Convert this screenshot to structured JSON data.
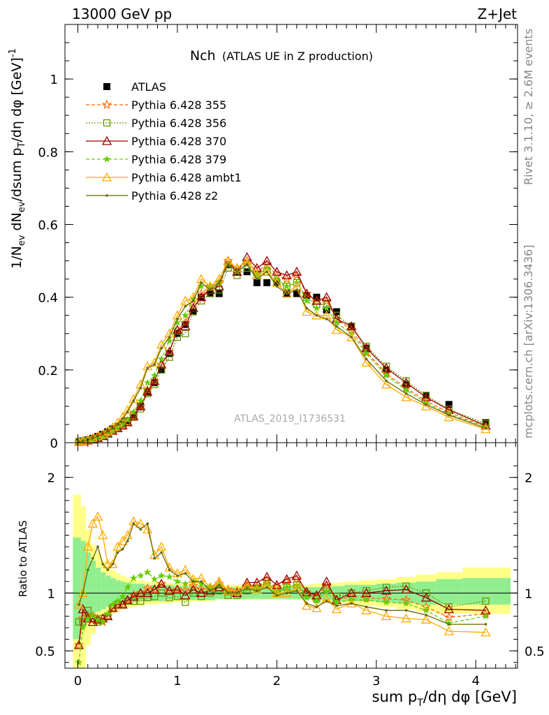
{
  "header": {
    "energy_label": "13000 GeV pp",
    "process_label": "Z+Jet",
    "side_version": "Rivet 3.1.10, ≥ 2.6M events",
    "side_site": "mcplots.cern.ch [arXiv:1306.3436]",
    "analysis_id": "ATLAS_2019_I1736531"
  },
  "chart_data": [
    {
      "type": "line",
      "title": "Nch",
      "subtitle": "(ATLAS UE in Z production)",
      "ylabel": "1/N_ev dN_ev/dsum p_T/dη dφ [GeV]^-1",
      "ylabel_parts": {
        "a": "1/N",
        "b": "ev",
        "c": " dN",
        "d": "ev",
        "e": "/dsum p",
        "f": "T",
        "g": "/dη dφ  [GeV]",
        "h": "-1"
      },
      "xlim": [
        -0.13,
        4.42
      ],
      "ylim": [
        0,
        1.15
      ],
      "yticks": [
        0,
        0.2,
        0.4,
        0.6,
        0.8,
        1
      ],
      "ytick_labels": [
        "0",
        "0.2",
        "0.4",
        "0.6",
        "0.8",
        "1"
      ],
      "x": [
        0.01,
        0.05,
        0.1,
        0.15,
        0.2,
        0.25,
        0.3,
        0.35,
        0.4,
        0.45,
        0.5,
        0.56,
        0.63,
        0.7,
        0.77,
        0.84,
        0.92,
        1.0,
        1.08,
        1.16,
        1.24,
        1.33,
        1.42,
        1.51,
        1.6,
        1.7,
        1.8,
        1.9,
        2.0,
        2.1,
        2.2,
        2.3,
        2.4,
        2.5,
        2.6,
        2.75,
        2.9,
        3.1,
        3.3,
        3.5,
        3.73,
        4.1
      ],
      "series": [
        {
          "name": "ATLAS",
          "color": "#000000",
          "values": [
            0.003,
            0.005,
            0.008,
            0.012,
            0.017,
            0.023,
            0.03,
            0.038,
            0.044,
            0.052,
            0.06,
            0.075,
            0.1,
            0.14,
            0.165,
            0.2,
            0.245,
            0.3,
            0.325,
            0.36,
            0.4,
            0.41,
            0.41,
            0.49,
            0.47,
            0.47,
            0.44,
            0.44,
            0.44,
            0.41,
            0.41,
            0.405,
            0.4,
            0.365,
            0.36,
            0.32,
            0.26,
            0.2,
            0.16,
            0.13,
            0.105,
            0.055
          ]
        },
        {
          "name": "Pythia 6.428 355",
          "color": "#ff6600",
          "values": [
            0.002,
            0.004,
            0.006,
            0.009,
            0.013,
            0.018,
            0.025,
            0.033,
            0.04,
            0.047,
            0.056,
            0.073,
            0.1,
            0.145,
            0.17,
            0.215,
            0.25,
            0.31,
            0.33,
            0.38,
            0.41,
            0.43,
            0.44,
            0.5,
            0.48,
            0.5,
            0.47,
            0.49,
            0.46,
            0.45,
            0.46,
            0.41,
            0.39,
            0.39,
            0.34,
            0.31,
            0.25,
            0.19,
            0.15,
            0.115,
            0.083,
            0.045
          ]
        },
        {
          "name": "Pythia 6.428 356",
          "color": "#669900",
          "values": [
            0.002,
            0.004,
            0.006,
            0.009,
            0.013,
            0.018,
            0.025,
            0.033,
            0.04,
            0.047,
            0.056,
            0.07,
            0.093,
            0.135,
            0.16,
            0.2,
            0.235,
            0.29,
            0.3,
            0.36,
            0.39,
            0.41,
            0.42,
            0.48,
            0.46,
            0.48,
            0.46,
            0.47,
            0.44,
            0.43,
            0.44,
            0.4,
            0.38,
            0.38,
            0.35,
            0.32,
            0.265,
            0.21,
            0.17,
            0.13,
            0.092,
            0.052
          ]
        },
        {
          "name": "Pythia 6.428 370",
          "color": "#990000",
          "values": [
            0.002,
            0.004,
            0.006,
            0.009,
            0.013,
            0.018,
            0.025,
            0.033,
            0.04,
            0.047,
            0.056,
            0.073,
            0.1,
            0.14,
            0.17,
            0.215,
            0.25,
            0.31,
            0.32,
            0.37,
            0.4,
            0.42,
            0.43,
            0.5,
            0.47,
            0.51,
            0.48,
            0.5,
            0.47,
            0.46,
            0.47,
            0.41,
            0.39,
            0.4,
            0.34,
            0.32,
            0.26,
            0.205,
            0.165,
            0.125,
            0.09,
            0.047
          ]
        },
        {
          "name": "Pythia 6.428 379",
          "color": "#66cc00",
          "values": [
            0.002,
            0.004,
            0.006,
            0.009,
            0.013,
            0.018,
            0.025,
            0.033,
            0.041,
            0.05,
            0.063,
            0.085,
            0.115,
            0.165,
            0.185,
            0.23,
            0.28,
            0.33,
            0.35,
            0.395,
            0.43,
            0.43,
            0.44,
            0.49,
            0.47,
            0.49,
            0.46,
            0.48,
            0.45,
            0.43,
            0.44,
            0.39,
            0.37,
            0.37,
            0.33,
            0.3,
            0.245,
            0.185,
            0.145,
            0.11,
            0.078,
            0.044
          ]
        },
        {
          "name": "Pythia 6.428 ambt1",
          "color": "#ffaa00",
          "values": [
            0.002,
            0.005,
            0.008,
            0.013,
            0.018,
            0.024,
            0.032,
            0.042,
            0.055,
            0.07,
            0.09,
            0.12,
            0.16,
            0.21,
            0.22,
            0.27,
            0.3,
            0.35,
            0.39,
            0.4,
            0.45,
            0.43,
            0.45,
            0.5,
            0.48,
            0.5,
            0.46,
            0.47,
            0.44,
            0.41,
            0.43,
            0.36,
            0.35,
            0.35,
            0.31,
            0.29,
            0.22,
            0.16,
            0.125,
            0.1,
            0.07,
            0.037
          ]
        },
        {
          "name": "Pythia 6.428 z2",
          "color": "#666600",
          "values": [
            0.002,
            0.005,
            0.008,
            0.012,
            0.017,
            0.023,
            0.031,
            0.04,
            0.052,
            0.066,
            0.085,
            0.115,
            0.15,
            0.205,
            0.215,
            0.26,
            0.29,
            0.34,
            0.375,
            0.39,
            0.44,
            0.42,
            0.44,
            0.49,
            0.47,
            0.49,
            0.45,
            0.47,
            0.43,
            0.41,
            0.42,
            0.37,
            0.35,
            0.34,
            0.32,
            0.29,
            0.23,
            0.17,
            0.135,
            0.105,
            0.076,
            0.04
          ]
        }
      ]
    },
    {
      "type": "line",
      "ylabel": "Ratio to ATLAS",
      "xlabel": "sum p_T/dη dφ [GeV]",
      "xlabel_parts": {
        "a": "sum p",
        "b": "T",
        "c": "/dη dφ [GeV]"
      },
      "xlim": [
        -0.13,
        4.42
      ],
      "ylim": [
        0.35,
        2.3
      ],
      "yticks": [
        0.5,
        1,
        2
      ],
      "ytick_labels": [
        "0.5",
        "1",
        "2"
      ],
      "xticks": [
        0,
        1,
        2,
        3,
        4
      ],
      "xtick_labels": [
        "0",
        "1",
        "2",
        "3",
        "4"
      ],
      "x": [
        0.01,
        0.05,
        0.1,
        0.15,
        0.2,
        0.25,
        0.3,
        0.35,
        0.4,
        0.45,
        0.5,
        0.56,
        0.63,
        0.7,
        0.77,
        0.84,
        0.92,
        1.0,
        1.08,
        1.16,
        1.24,
        1.33,
        1.42,
        1.51,
        1.6,
        1.7,
        1.8,
        1.9,
        2.0,
        2.1,
        2.2,
        2.3,
        2.4,
        2.5,
        2.6,
        2.75,
        2.9,
        3.1,
        3.3,
        3.5,
        3.73,
        4.1
      ],
      "band_edges": [
        -0.05,
        0.03,
        0.08,
        0.13,
        0.18,
        0.23,
        0.28,
        0.33,
        0.38,
        0.43,
        0.48,
        0.53,
        0.6,
        0.67,
        0.74,
        0.81,
        0.88,
        0.96,
        1.04,
        1.12,
        1.2,
        1.28,
        1.38,
        1.46,
        1.56,
        1.65,
        1.75,
        1.85,
        1.95,
        2.05,
        2.15,
        2.25,
        2.35,
        2.45,
        2.55,
        2.68,
        2.82,
        3.0,
        3.2,
        3.4,
        3.6,
        3.87,
        4.35
      ],
      "band_stat_lo": [
        0.6,
        0.7,
        0.75,
        0.8,
        0.84,
        0.86,
        0.88,
        0.89,
        0.9,
        0.91,
        0.92,
        0.92,
        0.93,
        0.93,
        0.93,
        0.93,
        0.94,
        0.94,
        0.94,
        0.94,
        0.94,
        0.94,
        0.95,
        0.95,
        0.95,
        0.95,
        0.95,
        0.95,
        0.95,
        0.95,
        0.95,
        0.95,
        0.95,
        0.94,
        0.93,
        0.93,
        0.93,
        0.92,
        0.91,
        0.9,
        0.9,
        0.9
      ],
      "band_stat_hi": [
        1.48,
        1.45,
        1.35,
        1.28,
        1.22,
        1.18,
        1.15,
        1.13,
        1.11,
        1.1,
        1.09,
        1.08,
        1.08,
        1.07,
        1.07,
        1.07,
        1.07,
        1.06,
        1.06,
        1.06,
        1.06,
        1.06,
        1.05,
        1.05,
        1.05,
        1.05,
        1.05,
        1.05,
        1.05,
        1.05,
        1.05,
        1.05,
        1.05,
        1.06,
        1.06,
        1.07,
        1.07,
        1.08,
        1.09,
        1.1,
        1.12,
        1.13
      ],
      "band_sys_lo": [
        0.35,
        0.35,
        0.55,
        0.65,
        0.72,
        0.77,
        0.8,
        0.82,
        0.84,
        0.86,
        0.87,
        0.88,
        0.89,
        0.9,
        0.9,
        0.91,
        0.91,
        0.92,
        0.92,
        0.93,
        0.93,
        0.93,
        0.94,
        0.94,
        0.94,
        0.94,
        0.94,
        0.94,
        0.94,
        0.94,
        0.94,
        0.94,
        0.93,
        0.92,
        0.91,
        0.9,
        0.89,
        0.88,
        0.86,
        0.84,
        0.82,
        0.82
      ],
      "band_sys_hi": [
        1.85,
        1.75,
        1.55,
        1.42,
        1.35,
        1.28,
        1.24,
        1.2,
        1.17,
        1.15,
        1.13,
        1.12,
        1.11,
        1.1,
        1.1,
        1.09,
        1.09,
        1.08,
        1.08,
        1.08,
        1.07,
        1.07,
        1.07,
        1.07,
        1.07,
        1.07,
        1.07,
        1.07,
        1.07,
        1.07,
        1.07,
        1.07,
        1.08,
        1.08,
        1.09,
        1.1,
        1.11,
        1.12,
        1.14,
        1.16,
        1.18,
        1.22
      ],
      "band_stat_color": "#90ee90",
      "band_sys_color": "#ffff88",
      "series": [
        {
          "name": "Pythia 6.428 355",
          "color": "#ff6600",
          "values": [
            0.55,
            0.78,
            0.8,
            0.8,
            0.77,
            0.75,
            0.8,
            0.87,
            0.9,
            0.9,
            0.94,
            0.98,
            1.0,
            1.04,
            1.03,
            1.08,
            1.02,
            1.03,
            1.02,
            1.06,
            1.03,
            1.05,
            1.08,
            1.03,
            1.02,
            1.06,
            1.06,
            1.11,
            1.05,
            1.1,
            1.12,
            1.0,
            0.97,
            1.07,
            0.94,
            0.97,
            0.96,
            0.95,
            0.94,
            0.88,
            0.79,
            0.82
          ]
        },
        {
          "name": "Pythia 6.428 356",
          "color": "#669900",
          "values": [
            0.75,
            0.75,
            0.85,
            0.78,
            0.75,
            0.78,
            0.8,
            0.87,
            0.9,
            0.9,
            0.93,
            0.93,
            0.93,
            0.96,
            0.97,
            1.0,
            0.96,
            0.97,
            0.92,
            1.0,
            0.97,
            1.0,
            1.02,
            0.98,
            0.98,
            1.02,
            1.04,
            1.07,
            1.0,
            1.05,
            1.07,
            0.99,
            0.95,
            1.04,
            0.97,
            1.0,
            1.02,
            1.05,
            1.06,
            1.0,
            0.88,
            0.93
          ]
        },
        {
          "name": "Pythia 6.428 370",
          "color": "#990000",
          "values": [
            0.55,
            0.86,
            0.78,
            0.75,
            0.77,
            0.78,
            0.8,
            0.87,
            0.9,
            0.9,
            0.94,
            0.97,
            1.0,
            1.0,
            1.03,
            1.08,
            1.02,
            1.03,
            0.98,
            1.03,
            1.0,
            1.02,
            1.05,
            1.02,
            1.0,
            1.09,
            1.09,
            1.14,
            1.07,
            1.12,
            1.15,
            1.01,
            0.98,
            1.1,
            0.94,
            1.0,
            1.0,
            1.02,
            1.03,
            0.96,
            0.86,
            0.85
          ]
        },
        {
          "name": "Pythia 6.428 379",
          "color": "#66cc00",
          "values": [
            0.4,
            0.7,
            0.78,
            0.8,
            0.77,
            0.75,
            0.82,
            0.9,
            0.93,
            0.97,
            1.05,
            1.13,
            1.15,
            1.18,
            1.12,
            1.15,
            1.14,
            1.1,
            1.08,
            1.1,
            1.08,
            1.05,
            1.07,
            1.0,
            1.0,
            1.04,
            1.05,
            1.09,
            1.02,
            1.05,
            1.07,
            0.96,
            0.93,
            1.01,
            0.92,
            0.94,
            0.94,
            0.92,
            0.91,
            0.85,
            0.74,
            0.8
          ]
        },
        {
          "name": "Pythia 6.428 ambt1",
          "color": "#ffaa00",
          "values": [
            0.9,
            1.0,
            1.4,
            1.6,
            1.66,
            1.5,
            1.25,
            1.25,
            1.4,
            1.45,
            1.5,
            1.62,
            1.6,
            1.55,
            1.33,
            1.4,
            1.22,
            1.17,
            1.2,
            1.12,
            1.13,
            1.05,
            1.1,
            1.02,
            1.02,
            1.07,
            1.03,
            1.07,
            1.0,
            1.0,
            1.05,
            0.89,
            0.87,
            0.95,
            0.86,
            0.91,
            0.85,
            0.8,
            0.78,
            0.77,
            0.67,
            0.66
          ]
        },
        {
          "name": "Pythia 6.428 z2",
          "color": "#666600",
          "values": [
            0.9,
            1.0,
            1.2,
            1.3,
            1.4,
            1.25,
            1.2,
            1.25,
            1.35,
            1.38,
            1.45,
            1.6,
            1.55,
            1.6,
            1.3,
            1.35,
            1.2,
            1.15,
            1.17,
            1.1,
            1.1,
            1.02,
            1.07,
            1.0,
            1.0,
            1.04,
            1.02,
            1.05,
            0.98,
            1.0,
            1.02,
            0.91,
            0.88,
            0.93,
            0.89,
            0.91,
            0.88,
            0.85,
            0.85,
            0.81,
            0.73,
            0.73
          ]
        }
      ]
    }
  ],
  "legend_markers": [
    "filled-square",
    "open-star",
    "open-square",
    "open-triangle",
    "small-star",
    "open-triangle",
    "small-dot"
  ]
}
